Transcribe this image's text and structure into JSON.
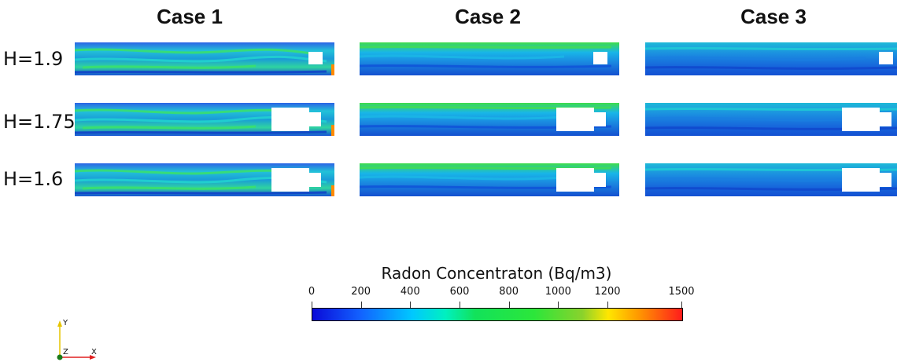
{
  "cases": [
    {
      "title": "Case 1",
      "color": "#1f9be0"
    },
    {
      "title": "Case 2",
      "color": "#1aa7e8"
    },
    {
      "title": "Case 3",
      "color": "#1f83de"
    }
  ],
  "rows": [
    {
      "label": "H=1.9",
      "obstacle": "small"
    },
    {
      "label": "H=1.75",
      "obstacle": "large"
    },
    {
      "label": "H=1.6",
      "obstacle": "large"
    }
  ],
  "colorbar": {
    "title": "Radon Concentraton (Bq/m3)",
    "min": 0,
    "max": 1500,
    "ticks": [
      "0",
      "200",
      "400",
      "600",
      "800",
      "1000",
      "1200",
      "1500"
    ]
  },
  "axes": {
    "y_label": "Y",
    "z_label": "Z",
    "x_label": "X"
  }
}
